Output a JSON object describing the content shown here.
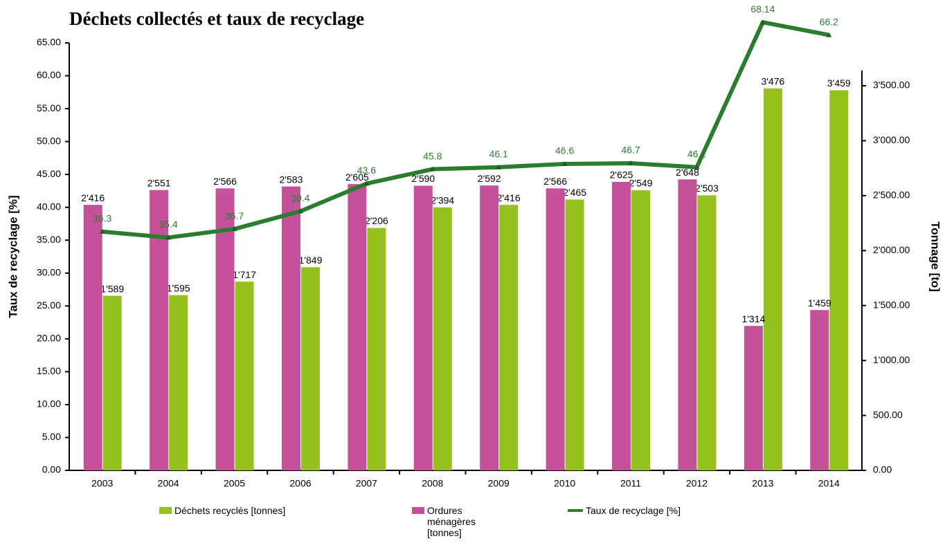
{
  "chart_data": {
    "type": "bar_line",
    "title": "Déchets collectés et taux de recyclage",
    "ylabel": "Taux de recyclage [%]",
    "y2label": "Tonnage [to]",
    "categories": [
      "2003",
      "2004",
      "2005",
      "2006",
      "2007",
      "2008",
      "2009",
      "2010",
      "2011",
      "2012",
      "2013",
      "2014"
    ],
    "series": [
      {
        "name": "Déchets recyclés [tonnes]",
        "type": "bar",
        "axis": "y2",
        "color": "#95c11f",
        "values": [
          1589,
          1595,
          1717,
          1849,
          2206,
          2394,
          2416,
          2465,
          2549,
          2503,
          3476,
          3459
        ],
        "value_labels": [
          "1'589",
          "1'595",
          "1'717",
          "1'849",
          "2'206",
          "2'394",
          "2'416",
          "2'465",
          "2'549",
          "2'503",
          "3'476",
          "3'459"
        ]
      },
      {
        "name": "Ordures ménagères [tonnes]",
        "type": "bar",
        "axis": "y2",
        "color": "#c4519a",
        "values": [
          2416,
          2551,
          2566,
          2583,
          2605,
          2590,
          2592,
          2566,
          2625,
          2648,
          1314,
          1459
        ],
        "value_labels": [
          "2'416",
          "2'551",
          "2'566",
          "2'583",
          "2'605",
          "2'590",
          "2'592",
          "2'566",
          "2'625",
          "2'648",
          "1'314",
          "1'459"
        ]
      },
      {
        "name": "Taux de recyclage [%]",
        "type": "line",
        "color": "#2a7d2e",
        "values": [
          36.3,
          35.4,
          36.7,
          39.4,
          43.6,
          45.8,
          46.1,
          46.6,
          46.7,
          46.1,
          68.14,
          66.2
        ]
      }
    ],
    "ylim": [
      0,
      65
    ],
    "yticks": [
      {
        "value": 0,
        "label": "0.00"
      },
      {
        "value": 5,
        "label": "5.00"
      },
      {
        "value": 10,
        "label": "10.00"
      },
      {
        "value": 15,
        "label": "15.00"
      },
      {
        "value": 20,
        "label": "20.00"
      },
      {
        "value": 25,
        "label": "25.00"
      },
      {
        "value": 30,
        "label": "30.00"
      },
      {
        "value": 35,
        "label": "35.00"
      },
      {
        "value": 40,
        "label": "40.00"
      },
      {
        "value": 45,
        "label": "45.00"
      },
      {
        "value": 50,
        "label": "50.00"
      },
      {
        "value": 55,
        "label": "55.00"
      },
      {
        "value": 60,
        "label": "60.00"
      },
      {
        "value": 65,
        "label": "65.00"
      }
    ],
    "y2lim": [
      0,
      3890
    ],
    "y2ticks": [
      {
        "value": 0,
        "label": "0.00"
      },
      {
        "value": 500,
        "label": "500.00"
      },
      {
        "value": 1000,
        "label": "1'000.00"
      },
      {
        "value": 1500,
        "label": "1'500.00"
      },
      {
        "value": 2000,
        "label": "2'000.00"
      },
      {
        "value": 2500,
        "label": "2'500.00"
      },
      {
        "value": 3000,
        "label": "3'000.00"
      },
      {
        "value": 3500,
        "label": "3'500.00"
      }
    ]
  }
}
